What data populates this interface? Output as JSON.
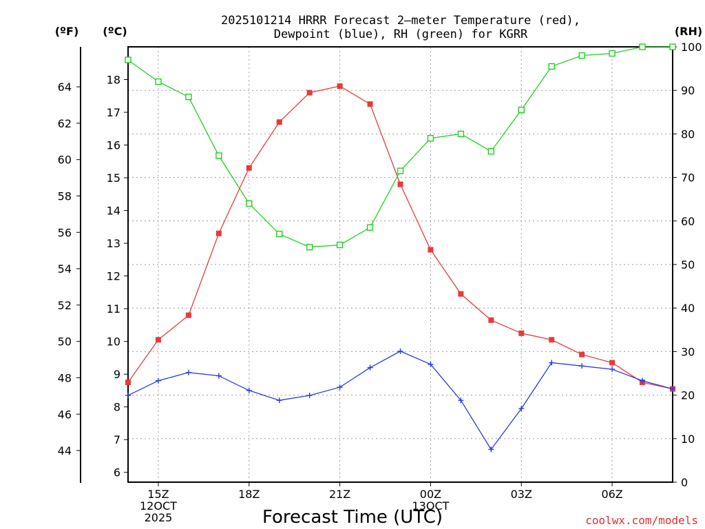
{
  "chart_data": {
    "type": "line",
    "title_lines": [
      "2025101214 HRRR Forecast 2—meter Temperature (red),",
      "Dewpoint (blue), RH (green) for KGRR"
    ],
    "left_unit_f": "(ºF)",
    "left_unit_c": "(ºC)",
    "right_unit": "(RH)",
    "xlabel": "Forecast Time (UTC)",
    "credit": "coolwx.com/models",
    "x_hours": [
      14,
      15,
      16,
      17,
      18,
      19,
      20,
      21,
      22,
      23,
      24,
      25,
      26,
      27,
      28,
      29,
      30,
      31,
      32
    ],
    "xlim": [
      14,
      32
    ],
    "x_ticks": [
      {
        "x": 15,
        "lines": [
          "15Z",
          "12OCT",
          "2025"
        ]
      },
      {
        "x": 18,
        "lines": [
          "18Z"
        ]
      },
      {
        "x": 21,
        "lines": [
          "21Z"
        ]
      },
      {
        "x": 24,
        "lines": [
          "00Z",
          "13OCT"
        ]
      },
      {
        "x": 27,
        "lines": [
          "03Z"
        ]
      },
      {
        "x": 30,
        "lines": [
          "06Z"
        ]
      }
    ],
    "ylim_c": [
      5.7,
      19.0
    ],
    "y_ticks_c": [
      6,
      7,
      8,
      9,
      10,
      11,
      12,
      13,
      14,
      15,
      16,
      17,
      18
    ],
    "y_ticks_f": [
      44,
      46,
      48,
      50,
      52,
      54,
      56,
      58,
      60,
      62,
      64
    ],
    "ylim_rh": [
      0,
      100
    ],
    "y_ticks_rh": [
      0,
      10,
      20,
      30,
      40,
      50,
      60,
      70,
      80,
      90,
      100
    ],
    "colors": {
      "temperature": "#e83a3a",
      "dewpoint": "#2a3ae0",
      "rh": "#1ed01e"
    },
    "series": [
      {
        "name": "Temperature",
        "axis": "c",
        "marker": "filled-square",
        "values": [
          8.75,
          10.05,
          10.8,
          13.3,
          15.3,
          16.7,
          17.6,
          17.8,
          17.25,
          14.8,
          12.8,
          11.45,
          10.65,
          10.25,
          10.05,
          9.6,
          9.35,
          8.75,
          8.55
        ]
      },
      {
        "name": "Dewpoint",
        "axis": "c",
        "marker": "plus",
        "values": [
          8.35,
          8.8,
          9.05,
          8.95,
          8.5,
          8.2,
          8.35,
          8.6,
          9.2,
          9.7,
          9.3,
          8.2,
          6.7,
          7.95,
          9.35,
          9.25,
          9.15,
          8.8,
          8.55
        ]
      },
      {
        "name": "RH",
        "axis": "rh",
        "marker": "open-square",
        "values": [
          97,
          92,
          88.5,
          75,
          64,
          57,
          54,
          54.5,
          58.5,
          71.5,
          79,
          80,
          76,
          85.5,
          95.5,
          98,
          98.5,
          100,
          100
        ]
      }
    ]
  }
}
